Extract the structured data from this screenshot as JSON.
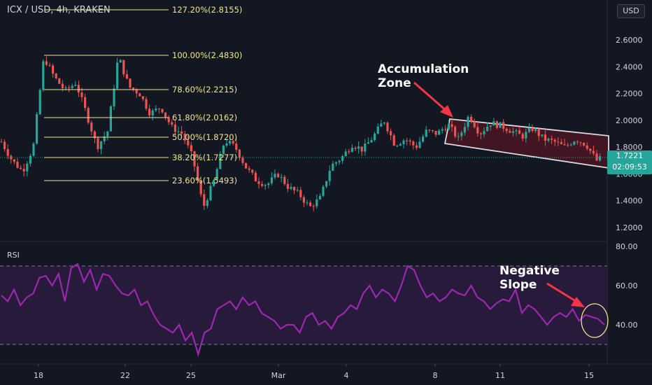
{
  "header": {
    "title": "ICX / USD, 4h, KRAKEN",
    "currency_button": "USD",
    "rsi_label": "RSI"
  },
  "annotations": {
    "accumulation": [
      "Accumulation",
      "Zone"
    ],
    "negative_slope": [
      "Negative",
      "Slope"
    ]
  },
  "price_marker": {
    "price": "1.7221",
    "countdown": "02:09:53"
  },
  "colors": {
    "background": "#131722",
    "up": "#26a69a",
    "down": "#ef5350",
    "fib": "#f0e68c",
    "rsi_line": "#9c27b0",
    "rsi_band": "#2a1b3d",
    "channel_fill": "#4a1522",
    "arrow": "#f23645",
    "text": "#d1d4dc"
  },
  "chart_data": [
    {
      "type": "candlestick",
      "title": "ICX / USD, 4h, KRAKEN",
      "x_ticks": [
        "18",
        "22",
        "25",
        "Mar",
        "4",
        "8",
        "11",
        "15"
      ],
      "y_ticks": [
        "1.2000",
        "1.4000",
        "1.6000",
        "1.8000",
        "2.0000",
        "2.2000",
        "2.4000",
        "2.6000"
      ],
      "ylim": [
        1.12,
        2.78
      ],
      "last_price": 1.7221,
      "fibonacci_levels": [
        {
          "label": "127.20%(2.8155)",
          "value": 2.8155
        },
        {
          "label": "100.00%(2.4830)",
          "value": 2.483
        },
        {
          "label": "78.60%(2.2215)",
          "value": 2.2215
        },
        {
          "label": "61.80%(2.0162)",
          "value": 2.0162
        },
        {
          "label": "50.00%(1.8720)",
          "value": 1.872
        },
        {
          "label": "38.20%(1.7277)",
          "value": 1.7277
        },
        {
          "label": "23.60%(1.5493)",
          "value": 1.5493
        }
      ],
      "channel": {
        "label": "Accumulation Zone",
        "upper": [
          [
            9.0,
            2.02
          ],
          [
            15.5,
            1.88
          ]
        ],
        "lower": [
          [
            9.0,
            1.82
          ],
          [
            15.5,
            1.66
          ]
        ]
      },
      "price_path": [
        [
          13.5,
          1.84
        ],
        [
          14.0,
          1.7
        ],
        [
          14.5,
          1.62
        ],
        [
          15.0,
          1.8
        ],
        [
          15.5,
          2.47
        ],
        [
          16.0,
          2.32
        ],
        [
          16.5,
          2.22
        ],
        [
          17.0,
          2.28
        ],
        [
          17.5,
          2.05
        ],
        [
          18.0,
          1.8
        ],
        [
          18.5,
          1.92
        ],
        [
          19.0,
          2.48
        ],
        [
          19.5,
          2.25
        ],
        [
          20.0,
          2.2
        ],
        [
          20.5,
          2.05
        ],
        [
          21.0,
          2.1
        ],
        [
          21.5,
          1.95
        ],
        [
          22.0,
          1.9
        ],
        [
          22.5,
          1.72
        ],
        [
          23.0,
          1.35
        ],
        [
          23.5,
          1.55
        ],
        [
          24.0,
          1.85
        ],
        [
          24.5,
          1.8
        ],
        [
          25.0,
          1.65
        ],
        [
          25.5,
          1.55
        ],
        [
          26.0,
          1.52
        ],
        [
          26.5,
          1.6
        ],
        [
          27.0,
          1.5
        ],
        [
          27.5,
          1.45
        ],
        [
          28.0,
          1.35
        ],
        [
          28.5,
          1.42
        ],
        [
          29.0,
          1.66
        ],
        [
          29.5,
          1.72
        ],
        [
          30.0,
          1.82
        ],
        [
          30.5,
          1.78
        ],
        [
          31.0,
          1.88
        ],
        [
          31.5,
          2.0
        ],
        [
          32.0,
          1.82
        ],
        [
          32.5,
          1.86
        ],
        [
          33.0,
          1.8
        ],
        [
          33.5,
          1.92
        ],
        [
          34.0,
          1.9
        ],
        [
          34.5,
          1.97
        ],
        [
          35.0,
          1.86
        ],
        [
          35.5,
          2.04
        ],
        [
          36.0,
          1.9
        ],
        [
          36.5,
          1.98
        ],
        [
          37.0,
          1.96
        ],
        [
          37.5,
          1.92
        ],
        [
          38.0,
          1.88
        ],
        [
          38.5,
          1.94
        ],
        [
          39.0,
          1.86
        ],
        [
          39.5,
          1.84
        ],
        [
          40.0,
          1.8
        ],
        [
          40.5,
          1.86
        ],
        [
          41.0,
          1.82
        ],
        [
          41.5,
          1.7
        ],
        [
          41.8,
          1.7221
        ]
      ]
    },
    {
      "type": "line",
      "title": "RSI",
      "y_ticks": [
        "40.00",
        "60.00",
        "80.00"
      ],
      "ylim": [
        27,
        83
      ],
      "bands": [
        70,
        30
      ],
      "annotation": "Negative Slope",
      "values": [
        55,
        52,
        58,
        50,
        54,
        56,
        64,
        65,
        60,
        66,
        52,
        69,
        71,
        62,
        68,
        58,
        66,
        65,
        60,
        56,
        55,
        58,
        50,
        52,
        45,
        40,
        38,
        36,
        40,
        32,
        36,
        25,
        36,
        38,
        48,
        50,
        52,
        48,
        54,
        50,
        52,
        46,
        44,
        42,
        38,
        40,
        40,
        36,
        44,
        46,
        40,
        42,
        38,
        44,
        46,
        50,
        48,
        56,
        60,
        54,
        58,
        56,
        52,
        60,
        70,
        68,
        60,
        54,
        56,
        52,
        54,
        58,
        56,
        55,
        60,
        54,
        52,
        48,
        51,
        53,
        52,
        58,
        46,
        50,
        48,
        44,
        40,
        44,
        46,
        44,
        48,
        42,
        45,
        44,
        43,
        40
      ]
    }
  ]
}
